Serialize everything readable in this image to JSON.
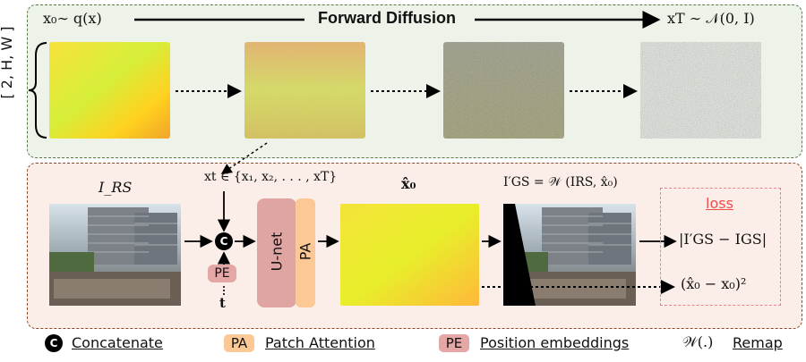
{
  "top": {
    "start_label": "x₀∼ q(x)",
    "title": "Forward Diffusion",
    "end_label": "xT ∼ 𝒩(0, I)",
    "dims": "[ 2, H, W ]"
  },
  "bottom": {
    "rs_label": "I_RS",
    "xt_label": "xt ∈ {x₁, x₂, . . . , xT}",
    "x0hat_label": "x̂₀",
    "gs_label": "I′GS = 𝒲 (IRS, x̂₀)",
    "unet_label": "U-net",
    "pa_label": "PA",
    "pe_label": "PE",
    "t_label": "t",
    "concat_symbol": "C",
    "loss_title": "loss",
    "loss_1": "|I′GS − IGS|",
    "loss_2": "(x̂₀ − x₀)²"
  },
  "legend": {
    "concat_symbol": "C",
    "concat_text": "Concatenate",
    "pa_chip": "PA",
    "pa_text": "Patch Attention",
    "pe_chip": "PE",
    "pe_text": "Position embeddings",
    "remap_symbol": "𝒲(.)",
    "remap_text": "Remap"
  },
  "colors": {
    "top_border": "#5a7a48",
    "bottom_border": "#8b4a2b",
    "unet_fill": "#dea5a3",
    "pa_fill": "#fcc996",
    "loss_border": "#f08080"
  }
}
